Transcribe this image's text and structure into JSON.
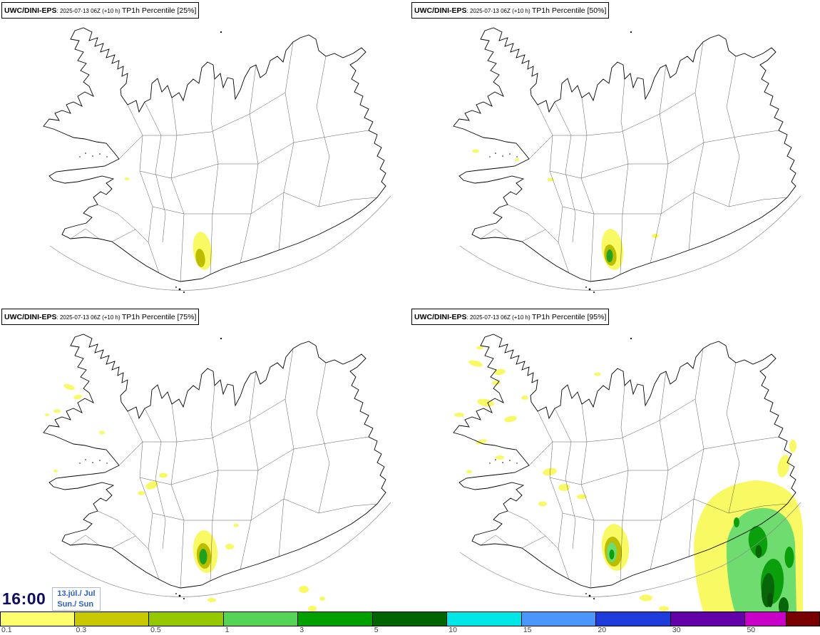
{
  "map": {
    "region": "Iceland"
  },
  "panels": [
    {
      "model": "UWC/DINI-EPS",
      "run": ": 2025-07-13 06Z (+10 h) ",
      "param": "TP1h Percentile [25%]"
    },
    {
      "model": "UWC/DINI-EPS",
      "run": ": 2025-07-13 06Z (+10 h) ",
      "param": "TP1h Percentile [50%]"
    },
    {
      "model": "UWC/DINI-EPS",
      "run": ": 2025-07-13 06Z (+10 h) ",
      "param": "TP1h Percentile [75%]"
    },
    {
      "model": "UWC/DINI-EPS",
      "run": ": 2025-07-13 06Z (+10 h) ",
      "param": "TP1h Percentile [95%]"
    }
  ],
  "footer": {
    "time": "16:00",
    "date": "13.júl./ Jul",
    "day": "Sun./ Sun"
  },
  "colorbar": {
    "unit_implied": "mm/h",
    "segments": [
      {
        "label": "0.1",
        "color": "#ffff6e",
        "flex": 1
      },
      {
        "label": "0.3",
        "color": "#c8c800",
        "flex": 1
      },
      {
        "label": "0.5",
        "color": "#96c800",
        "flex": 1
      },
      {
        "label": "1",
        "color": "#55d455",
        "flex": 1
      },
      {
        "label": "3",
        "color": "#00a000",
        "flex": 1
      },
      {
        "label": "5",
        "color": "#006400",
        "flex": 1
      },
      {
        "label": "10",
        "color": "#00e6e6",
        "flex": 1
      },
      {
        "label": "15",
        "color": "#4996ff",
        "flex": 1
      },
      {
        "label": "20",
        "color": "#1e3cdc",
        "flex": 1
      },
      {
        "label": "30",
        "color": "#6400aa",
        "flex": 1
      },
      {
        "label": "50",
        "color": "#c800c8",
        "flex": 0.55
      },
      {
        "label": "",
        "color": "#780000",
        "flex": 0.45
      }
    ]
  }
}
